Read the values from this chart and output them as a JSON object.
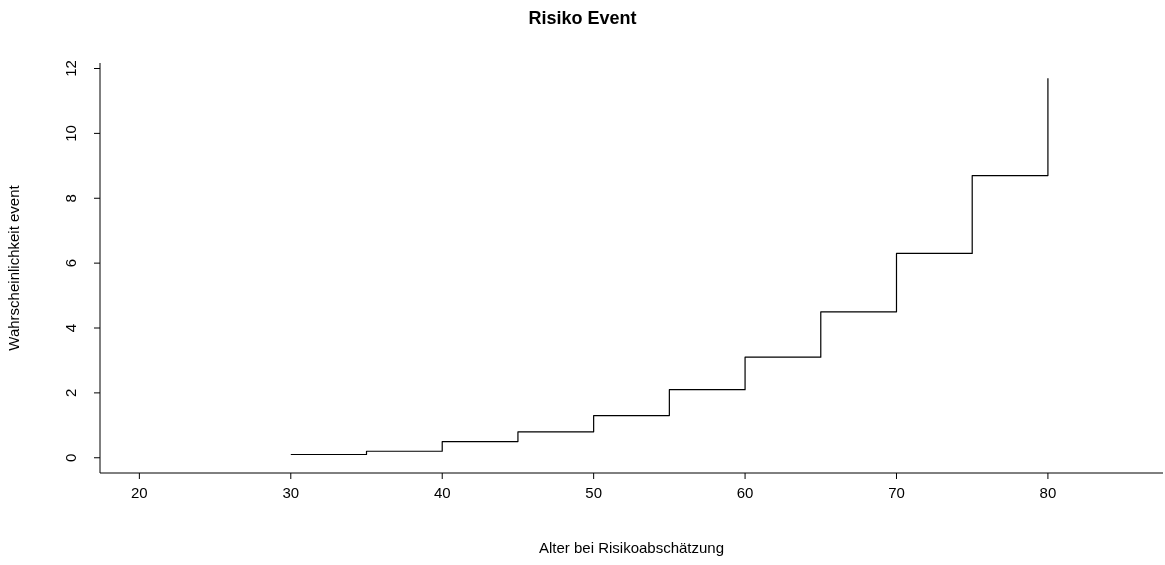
{
  "chart_data": {
    "type": "step",
    "title": "Risiko Event",
    "xlabel": "Alter bei Risikoabschätzung",
    "ylabel": "Wahrscheinlichkeit event",
    "x": [
      30,
      35,
      40,
      45,
      50,
      55,
      60,
      65,
      70,
      75,
      80
    ],
    "values": [
      0.1,
      0.2,
      0.5,
      0.8,
      1.3,
      2.1,
      3.1,
      4.5,
      6.3,
      8.7,
      11.7
    ],
    "color": "#000000",
    "xlim": [
      17.4,
      87.6
    ],
    "xticks": [
      20,
      30,
      40,
      50,
      60,
      70,
      80
    ],
    "ylim": [
      -0.47,
      12.17
    ],
    "yticks": [
      0,
      2,
      4,
      6,
      8,
      10,
      12
    ],
    "grid": false,
    "legend": false,
    "marker": "none"
  }
}
